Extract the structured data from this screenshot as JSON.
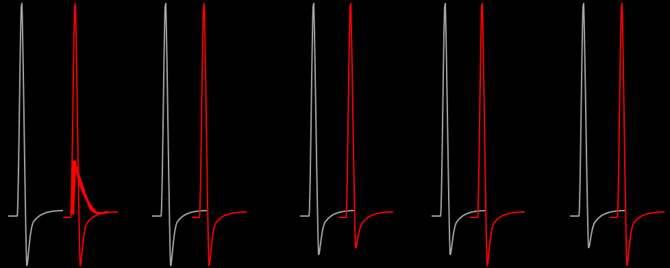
{
  "figure": {
    "background_color": "#000000",
    "baseline_color": "#000000",
    "trace_colors": {
      "reference": "#a6a6a6",
      "test": "#ff0000"
    },
    "panels": [
      {
        "id": "panel-1",
        "reference_trace": true,
        "test_trace": true,
        "overlay_burst": true
      },
      {
        "id": "panel-2",
        "reference_trace": true,
        "test_trace": true,
        "overlay_burst": false
      },
      {
        "id": "panel-3",
        "reference_trace": true,
        "test_trace": true,
        "overlay_burst": false
      },
      {
        "id": "panel-4",
        "reference_trace": true,
        "test_trace": true,
        "overlay_burst": false
      },
      {
        "id": "panel-5",
        "reference_trace": true,
        "test_trace": true,
        "overlay_burst": false
      }
    ]
  }
}
